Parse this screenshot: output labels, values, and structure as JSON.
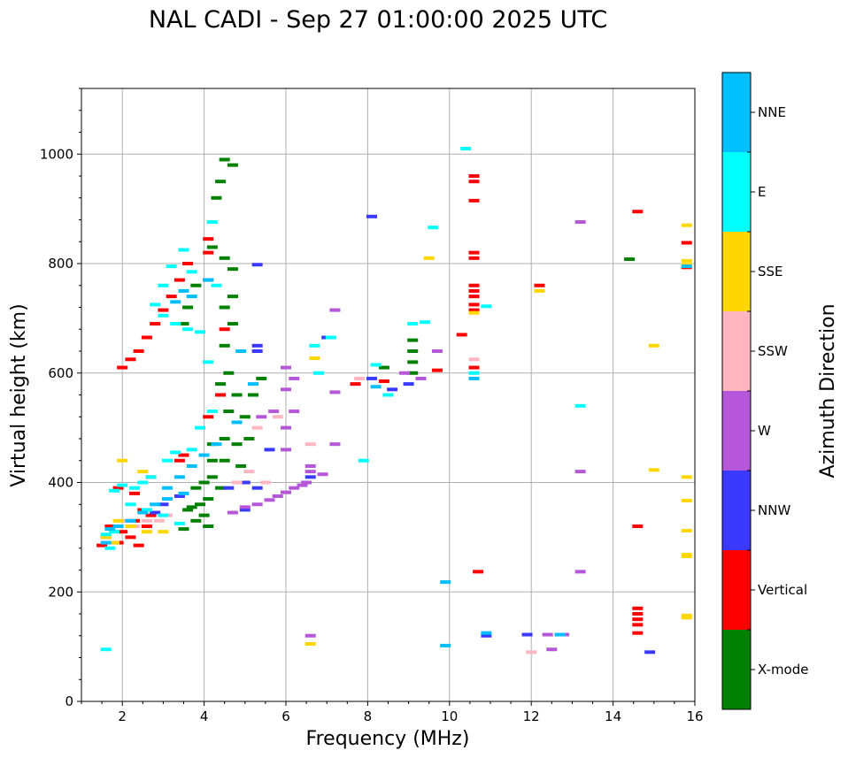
{
  "chart_data": {
    "type": "scatter",
    "title": "NAL CADI - Sep 27 01:00:00 2025 UTC",
    "xlabel": "Frequency (MHz)",
    "ylabel": "Virtual height (km)",
    "xlim": [
      1,
      16
    ],
    "ylim": [
      0,
      1120
    ],
    "xticks": [
      2,
      4,
      6,
      8,
      10,
      12,
      14,
      16
    ],
    "yticks": [
      0,
      200,
      400,
      600,
      800,
      1000
    ],
    "grid": true,
    "colorbar": {
      "label": "Azimuth Direction",
      "categories": [
        {
          "name": "X-mode",
          "color": "#008000"
        },
        {
          "name": "Vertical",
          "color": "#ff0000"
        },
        {
          "name": "NNW",
          "color": "#3a3aff"
        },
        {
          "name": "W",
          "color": "#b557d8"
        },
        {
          "name": "SSW",
          "color": "#ffb6c1"
        },
        {
          "name": "SSE",
          "color": "#ffd700"
        },
        {
          "name": "E",
          "color": "#00ffff"
        },
        {
          "name": "NNE",
          "color": "#00bfff"
        }
      ]
    },
    "series": [
      {
        "name": "X-mode",
        "points": [
          [
            4.3,
            920
          ],
          [
            4.5,
            990
          ],
          [
            4.4,
            950
          ],
          [
            4.7,
            980
          ],
          [
            4.2,
            830
          ],
          [
            4.5,
            810
          ],
          [
            4.7,
            790
          ],
          [
            4.1,
            770
          ],
          [
            3.8,
            760
          ],
          [
            4.5,
            720
          ],
          [
            4.7,
            740
          ],
          [
            3.6,
            720
          ],
          [
            3.5,
            690
          ],
          [
            4.5,
            650
          ],
          [
            4.7,
            690
          ],
          [
            4.6,
            600
          ],
          [
            4.8,
            560
          ],
          [
            4.4,
            580
          ],
          [
            4.6,
            530
          ],
          [
            5.0,
            520
          ],
          [
            5.2,
            560
          ],
          [
            5.4,
            590
          ],
          [
            4.5,
            480
          ],
          [
            4.2,
            470
          ],
          [
            4.8,
            470
          ],
          [
            5.1,
            480
          ],
          [
            4.2,
            440
          ],
          [
            4.5,
            440
          ],
          [
            4.9,
            430
          ],
          [
            4.2,
            410
          ],
          [
            4.0,
            400
          ],
          [
            3.8,
            390
          ],
          [
            4.4,
            390
          ],
          [
            4.1,
            370
          ],
          [
            3.9,
            360
          ],
          [
            3.7,
            355
          ],
          [
            3.6,
            350
          ],
          [
            4.0,
            340
          ],
          [
            3.8,
            330
          ],
          [
            4.1,
            320
          ],
          [
            3.5,
            315
          ],
          [
            9.1,
            660
          ],
          [
            9.1,
            640
          ],
          [
            9.1,
            620
          ],
          [
            9.1,
            600
          ],
          [
            8.4,
            610
          ],
          [
            14.4,
            808
          ]
        ]
      },
      {
        "name": "Vertical",
        "points": [
          [
            2.0,
            610
          ],
          [
            2.2,
            625
          ],
          [
            2.4,
            640
          ],
          [
            2.6,
            665
          ],
          [
            2.8,
            690
          ],
          [
            3.0,
            715
          ],
          [
            3.2,
            740
          ],
          [
            3.4,
            770
          ],
          [
            3.6,
            800
          ],
          [
            4.1,
            845
          ],
          [
            4.1,
            820
          ],
          [
            4.5,
            680
          ],
          [
            4.4,
            560
          ],
          [
            4.1,
            520
          ],
          [
            3.5,
            450
          ],
          [
            3.4,
            440
          ],
          [
            2.7,
            410
          ],
          [
            1.9,
            390
          ],
          [
            2.3,
            380
          ],
          [
            2.5,
            350
          ],
          [
            2.7,
            340
          ],
          [
            2.3,
            330
          ],
          [
            2.6,
            320
          ],
          [
            1.7,
            320
          ],
          [
            2.0,
            310
          ],
          [
            1.6,
            300
          ],
          [
            2.2,
            300
          ],
          [
            1.9,
            290
          ],
          [
            1.5,
            285
          ],
          [
            2.4,
            285
          ],
          [
            10.6,
            960
          ],
          [
            10.6,
            950
          ],
          [
            10.6,
            915
          ],
          [
            10.6,
            820
          ],
          [
            10.6,
            810
          ],
          [
            10.6,
            760
          ],
          [
            10.6,
            750
          ],
          [
            10.6,
            740
          ],
          [
            10.6,
            725
          ],
          [
            10.6,
            715
          ],
          [
            10.6,
            610
          ],
          [
            10.3,
            670
          ],
          [
            9.7,
            605
          ],
          [
            12.2,
            760
          ],
          [
            8.4,
            585
          ],
          [
            7.7,
            580
          ],
          [
            10.7,
            237
          ],
          [
            14.6,
            895
          ],
          [
            14.6,
            320
          ],
          [
            14.6,
            170
          ],
          [
            14.6,
            160
          ],
          [
            14.6,
            150
          ],
          [
            14.6,
            140
          ],
          [
            14.6,
            125
          ],
          [
            15.8,
            838
          ],
          [
            15.8,
            793
          ]
        ]
      },
      {
        "name": "NNW",
        "points": [
          [
            8.1,
            886
          ],
          [
            5.3,
            650
          ],
          [
            5.3,
            640
          ],
          [
            5.6,
            460
          ],
          [
            5.0,
            400
          ],
          [
            5.3,
            390
          ],
          [
            4.6,
            390
          ],
          [
            5.0,
            350
          ],
          [
            3.4,
            375
          ],
          [
            3.0,
            360
          ],
          [
            2.8,
            345
          ],
          [
            8.1,
            590
          ],
          [
            8.6,
            570
          ],
          [
            9.0,
            580
          ],
          [
            6.6,
            410
          ],
          [
            10.9,
            120
          ],
          [
            11.9,
            122
          ],
          [
            14.9,
            90
          ],
          [
            7.0,
            665
          ],
          [
            5.3,
            798
          ]
        ]
      },
      {
        "name": "W",
        "points": [
          [
            6.9,
            415
          ],
          [
            6.6,
            430
          ],
          [
            6.6,
            420
          ],
          [
            6.5,
            400
          ],
          [
            6.4,
            395
          ],
          [
            6.2,
            390
          ],
          [
            6.0,
            382
          ],
          [
            5.8,
            375
          ],
          [
            5.6,
            368
          ],
          [
            5.3,
            360
          ],
          [
            5.0,
            355
          ],
          [
            4.7,
            345
          ],
          [
            5.4,
            520
          ],
          [
            5.7,
            530
          ],
          [
            6.0,
            570
          ],
          [
            6.2,
            590
          ],
          [
            6.0,
            610
          ],
          [
            7.2,
            565
          ],
          [
            7.2,
            715
          ],
          [
            7.2,
            470
          ],
          [
            6.2,
            530
          ],
          [
            6.0,
            500
          ],
          [
            8.9,
            600
          ],
          [
            9.3,
            590
          ],
          [
            9.7,
            640
          ],
          [
            12.5,
            95
          ],
          [
            12.4,
            122
          ],
          [
            12.8,
            122
          ],
          [
            13.2,
            420
          ],
          [
            13.2,
            237
          ],
          [
            13.2,
            876
          ],
          [
            6.6,
            120
          ],
          [
            6.0,
            460
          ]
        ]
      },
      {
        "name": "SSW",
        "points": [
          [
            5.5,
            400
          ],
          [
            5.8,
            520
          ],
          [
            5.3,
            500
          ],
          [
            5.1,
            420
          ],
          [
            4.8,
            400
          ],
          [
            2.9,
            330
          ],
          [
            2.6,
            330
          ],
          [
            2.3,
            320
          ],
          [
            2.0,
            330
          ],
          [
            3.1,
            340
          ],
          [
            6.6,
            470
          ],
          [
            10.6,
            625
          ],
          [
            12.0,
            90
          ],
          [
            7.8,
            590
          ]
        ]
      },
      {
        "name": "SSE",
        "points": [
          [
            2.0,
            440
          ],
          [
            2.5,
            420
          ],
          [
            1.9,
            330
          ],
          [
            2.2,
            320
          ],
          [
            2.6,
            310
          ],
          [
            3.0,
            310
          ],
          [
            1.6,
            300
          ],
          [
            1.8,
            290
          ],
          [
            6.7,
            627
          ],
          [
            6.6,
            105
          ],
          [
            9.5,
            810
          ],
          [
            10.6,
            710
          ],
          [
            12.2,
            750
          ],
          [
            15.0,
            650
          ],
          [
            15.0,
            423
          ],
          [
            15.8,
            870
          ],
          [
            15.8,
            805
          ],
          [
            15.8,
            798
          ],
          [
            15.8,
            410
          ],
          [
            15.8,
            367
          ],
          [
            15.8,
            312
          ],
          [
            15.8,
            268
          ],
          [
            15.8,
            265
          ],
          [
            15.8,
            157
          ],
          [
            15.8,
            153
          ]
        ]
      },
      {
        "name": "E",
        "points": [
          [
            4.2,
            876
          ],
          [
            4.3,
            760
          ],
          [
            3.7,
            785
          ],
          [
            3.5,
            825
          ],
          [
            3.2,
            795
          ],
          [
            3.0,
            760
          ],
          [
            2.8,
            725
          ],
          [
            3.0,
            705
          ],
          [
            3.3,
            690
          ],
          [
            3.6,
            680
          ],
          [
            3.9,
            675
          ],
          [
            4.1,
            620
          ],
          [
            4.2,
            530
          ],
          [
            3.9,
            500
          ],
          [
            3.7,
            460
          ],
          [
            3.3,
            455
          ],
          [
            3.1,
            440
          ],
          [
            2.7,
            410
          ],
          [
            2.5,
            400
          ],
          [
            2.3,
            390
          ],
          [
            2.0,
            395
          ],
          [
            1.8,
            385
          ],
          [
            2.2,
            360
          ],
          [
            2.6,
            350
          ],
          [
            3.0,
            340
          ],
          [
            3.4,
            325
          ],
          [
            1.8,
            310
          ],
          [
            1.6,
            305
          ],
          [
            1.7,
            280
          ],
          [
            1.6,
            95
          ],
          [
            6.7,
            650
          ],
          [
            6.8,
            600
          ],
          [
            8.2,
            615
          ],
          [
            8.5,
            560
          ],
          [
            9.1,
            690
          ],
          [
            9.4,
            693
          ],
          [
            9.6,
            866
          ],
          [
            10.4,
            1010
          ],
          [
            10.6,
            600
          ],
          [
            10.9,
            722
          ],
          [
            13.2,
            540
          ],
          [
            7.9,
            440
          ],
          [
            7.1,
            665
          ]
        ]
      },
      {
        "name": "NNE",
        "points": [
          [
            3.7,
            740
          ],
          [
            4.1,
            770
          ],
          [
            3.5,
            750
          ],
          [
            3.3,
            730
          ],
          [
            4.9,
            640
          ],
          [
            5.2,
            580
          ],
          [
            4.8,
            510
          ],
          [
            4.3,
            470
          ],
          [
            4.0,
            450
          ],
          [
            3.7,
            430
          ],
          [
            3.4,
            410
          ],
          [
            3.1,
            390
          ],
          [
            3.5,
            380
          ],
          [
            3.1,
            370
          ],
          [
            2.8,
            360
          ],
          [
            2.5,
            345
          ],
          [
            2.2,
            330
          ],
          [
            1.9,
            320
          ],
          [
            1.7,
            315
          ],
          [
            1.6,
            290
          ],
          [
            8.2,
            575
          ],
          [
            9.9,
            218
          ],
          [
            9.9,
            102
          ],
          [
            10.6,
            590
          ],
          [
            10.9,
            125
          ],
          [
            12.7,
            122
          ],
          [
            15.8,
            795
          ]
        ]
      }
    ]
  }
}
